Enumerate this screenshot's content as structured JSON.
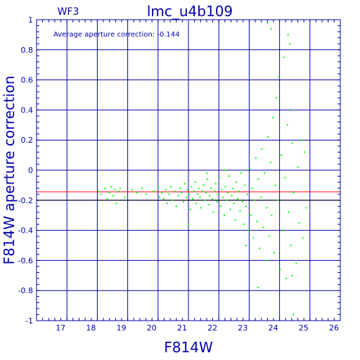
{
  "chart_data": {
    "type": "scatter",
    "panel_label": "WF3",
    "title": "lmc_u4b109",
    "annotation": "Average aperture correction: -0.144",
    "xlabel": "F814W",
    "ylabel": "F814W aperture correction",
    "xlim": [
      16,
      26
    ],
    "ylim": [
      -1,
      1
    ],
    "x_ticks": [
      17,
      18,
      19,
      20,
      21,
      22,
      23,
      24,
      25,
      26
    ],
    "y_ticks": [
      "1",
      "0.8",
      "0.6",
      "0.4",
      "0.2",
      "0",
      "-0.2",
      "-0.4",
      "-0.6",
      "-0.8",
      "-1"
    ],
    "grid": true,
    "reference_lines": [
      {
        "y": -0.144,
        "color": "#ff0000",
        "label": "average"
      },
      {
        "y": -0.2,
        "color": "#000000"
      }
    ],
    "series": [
      {
        "color": "#00ff00",
        "points": [
          [
            18.03,
            -0.14
          ],
          [
            18.12,
            -0.16
          ],
          [
            18.25,
            -0.12
          ],
          [
            18.33,
            -0.19
          ],
          [
            18.4,
            -0.15
          ],
          [
            18.45,
            -0.11
          ],
          [
            18.52,
            -0.17
          ],
          [
            18.58,
            -0.13
          ],
          [
            18.63,
            -0.22
          ],
          [
            18.7,
            -0.14
          ],
          [
            18.75,
            -0.12
          ],
          [
            18.9,
            -0.18
          ],
          [
            19.15,
            -0.13
          ],
          [
            19.3,
            -0.15
          ],
          [
            19.48,
            -0.12
          ],
          [
            19.62,
            -0.16
          ],
          [
            19.85,
            -0.14
          ],
          [
            20.0,
            -0.11
          ],
          [
            20.05,
            -0.18
          ],
          [
            20.12,
            -0.15
          ],
          [
            20.18,
            -0.19
          ],
          [
            20.25,
            -0.13
          ],
          [
            20.3,
            -0.22
          ],
          [
            20.36,
            -0.16
          ],
          [
            20.42,
            -0.11
          ],
          [
            20.48,
            -0.2
          ],
          [
            20.55,
            -0.14
          ],
          [
            20.6,
            -0.24
          ],
          [
            20.66,
            -0.17
          ],
          [
            20.72,
            -0.12
          ],
          [
            20.77,
            -0.15
          ],
          [
            20.83,
            -0.21
          ],
          [
            20.88,
            -0.09
          ],
          [
            20.93,
            -0.18
          ],
          [
            20.97,
            -0.13
          ],
          [
            21.02,
            -0.16
          ],
          [
            21.06,
            -0.26
          ],
          [
            21.1,
            -0.11
          ],
          [
            21.14,
            -0.19
          ],
          [
            21.18,
            -0.14
          ],
          [
            21.22,
            -0.08
          ],
          [
            21.26,
            -0.22
          ],
          [
            21.3,
            -0.16
          ],
          [
            21.34,
            -0.12
          ],
          [
            21.38,
            -0.18
          ],
          [
            21.42,
            -0.25
          ],
          [
            21.46,
            -0.14
          ],
          [
            21.5,
            -0.1
          ],
          [
            21.54,
            -0.2
          ],
          [
            21.58,
            -0.15
          ],
          [
            21.62,
            -0.06
          ],
          [
            21.66,
            -0.23
          ],
          [
            21.7,
            -0.17
          ],
          [
            21.74,
            -0.12
          ],
          [
            21.78,
            -0.19
          ],
          [
            21.82,
            -0.28
          ],
          [
            21.86,
            -0.14
          ],
          [
            21.9,
            -0.09
          ],
          [
            21.94,
            -0.21
          ],
          [
            21.98,
            -0.16
          ],
          [
            22.02,
            -0.05
          ],
          [
            22.06,
            -0.24
          ],
          [
            22.1,
            -0.13
          ],
          [
            22.14,
            -0.18
          ],
          [
            22.18,
            -0.3
          ],
          [
            22.22,
            -0.11
          ],
          [
            22.26,
            -0.2
          ],
          [
            22.3,
            -0.15
          ],
          [
            22.34,
            -0.04
          ],
          [
            22.38,
            -0.26
          ],
          [
            22.42,
            -0.17
          ],
          [
            22.46,
            -0.12
          ],
          [
            22.5,
            -0.22
          ],
          [
            22.54,
            -0.33
          ],
          [
            22.58,
            -0.08
          ],
          [
            22.62,
            -0.19
          ],
          [
            22.66,
            -0.14
          ],
          [
            22.7,
            -0.27
          ],
          [
            22.74,
            -0.02
          ],
          [
            22.78,
            -0.21
          ],
          [
            22.82,
            -0.36
          ],
          [
            22.86,
            -0.1
          ],
          [
            22.9,
            -0.24
          ],
          [
            22.94,
            -0.16
          ],
          [
            22.98,
            -0.4
          ],
          [
            23.02,
            0.01
          ],
          [
            23.06,
            -0.3
          ],
          [
            23.1,
            -0.12
          ],
          [
            23.14,
            -0.45
          ],
          [
            23.18,
            -0.2
          ],
          [
            23.22,
            0.08
          ],
          [
            23.26,
            -0.34
          ],
          [
            23.3,
            -0.06
          ],
          [
            23.34,
            -0.52
          ],
          [
            23.38,
            -0.18
          ],
          [
            23.42,
            0.14
          ],
          [
            23.46,
            -0.38
          ],
          [
            23.5,
            -0.02
          ],
          [
            23.54,
            -0.6
          ],
          [
            23.58,
            -0.25
          ],
          [
            23.62,
            0.22
          ],
          [
            23.66,
            -0.44
          ],
          [
            23.7,
            0.05
          ],
          [
            23.74,
            -0.3
          ],
          [
            23.78,
            0.35
          ],
          [
            23.82,
            -0.55
          ],
          [
            23.86,
            -0.1
          ],
          [
            23.9,
            0.48
          ],
          [
            23.94,
            -0.2
          ],
          [
            23.98,
            0.62
          ],
          [
            24.02,
            -0.66
          ],
          [
            24.06,
            0.1
          ],
          [
            24.1,
            -0.4
          ],
          [
            24.14,
            0.75
          ],
          [
            24.18,
            -0.05
          ],
          [
            24.22,
            -0.72
          ],
          [
            24.26,
            0.3
          ],
          [
            24.3,
            -0.28
          ],
          [
            24.34,
            0.84
          ],
          [
            24.38,
            -0.5
          ],
          [
            24.42,
            0.18
          ],
          [
            24.46,
            -0.15
          ],
          [
            24.5,
            0.4
          ],
          [
            24.55,
            -0.62
          ],
          [
            24.6,
            0.02
          ],
          [
            24.65,
            -0.35
          ],
          [
            24.7,
            0.2
          ],
          [
            24.76,
            -0.45
          ],
          [
            24.82,
            0.12
          ],
          [
            24.88,
            -0.25
          ],
          [
            23.6,
            0.98
          ],
          [
            23.72,
            0.94
          ],
          [
            24.28,
            0.9
          ],
          [
            24.4,
            -0.7
          ],
          [
            23.3,
            -0.78
          ],
          [
            24.45,
            -0.96
          ],
          [
            21.6,
            -0.02
          ],
          [
            22.2,
            0.0
          ],
          [
            22.9,
            -0.5
          ],
          [
            21.0,
            -0.36
          ]
        ]
      }
    ]
  }
}
